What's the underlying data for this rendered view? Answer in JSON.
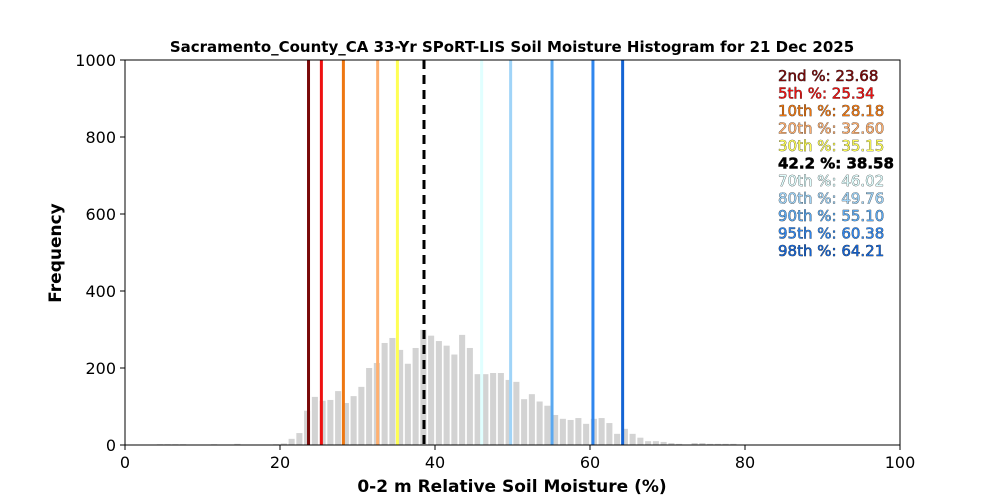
{
  "chart_data": {
    "type": "bar",
    "title": "Sacramento_County_CA 33-Yr SPoRT-LIS Soil Moisture Histogram for 21 Dec 2025",
    "xlabel": "0-2 m Relative Soil Moisture (%)",
    "ylabel": "Frequency",
    "xlim": [
      0,
      100
    ],
    "ylim": [
      0,
      1000
    ],
    "xticks": [
      "0",
      "20",
      "40",
      "60",
      "80",
      "100"
    ],
    "yticks": [
      "0",
      "200",
      "400",
      "600",
      "800",
      "1000"
    ],
    "bar_color": "#d3d3d3",
    "bins": {
      "x": [
        4.5,
        5.5,
        6.5,
        7.5,
        11.5,
        14.5,
        15.5,
        19.5,
        20.5,
        21.5,
        22.5,
        23.5,
        24.5,
        25.5,
        26.5,
        27.5,
        28.5,
        29.5,
        30.5,
        31.5,
        32.5,
        33.5,
        34.5,
        35.5,
        36.5,
        37.5,
        38.5,
        39.5,
        40.5,
        41.5,
        42.5,
        43.5,
        44.5,
        45.5,
        46.5,
        47.5,
        48.5,
        49.5,
        50.5,
        51.5,
        52.5,
        53.5,
        54.5,
        55.5,
        56.5,
        57.5,
        58.5,
        59.5,
        60.5,
        61.5,
        62.5,
        63.5,
        64.5,
        65.5,
        66.5,
        67.5,
        68.5,
        69.5,
        70.5,
        71.5,
        73.5,
        74.5,
        75.5,
        76.5,
        77.5,
        78.5
      ],
      "counts": [
        2,
        2,
        2,
        2,
        2,
        3,
        1,
        2,
        4,
        16,
        31,
        89,
        125,
        115,
        117,
        140,
        109,
        127,
        151,
        200,
        213,
        265,
        278,
        247,
        211,
        252,
        299,
        284,
        270,
        258,
        235,
        286,
        252,
        184,
        184,
        187,
        187,
        169,
        164,
        119,
        132,
        113,
        102,
        78,
        68,
        65,
        70,
        55,
        68,
        70,
        57,
        29,
        42,
        29,
        19,
        10,
        10,
        8,
        5,
        3,
        5,
        5,
        3,
        3,
        3,
        3
      ]
    },
    "percentile_lines": [
      {
        "label": "2nd %: 23.68",
        "value": 23.68,
        "color": "#7a0a0a",
        "dashed": false
      },
      {
        "label": "5th %: 25.34",
        "value": 25.34,
        "color": "#ee1111",
        "dashed": false
      },
      {
        "label": "10th %: 28.18",
        "value": 28.18,
        "color": "#ee7711",
        "dashed": false
      },
      {
        "label": "20th %: 32.60",
        "value": 32.6,
        "color": "#ffb070",
        "dashed": false
      },
      {
        "label": "30th %: 35.15",
        "value": 35.15,
        "color": "#ffff55",
        "dashed": false
      },
      {
        "label": "42.2 %: 38.58",
        "value": 38.58,
        "color": "#000000",
        "dashed": true
      },
      {
        "label": "70th %: 46.02",
        "value": 46.02,
        "color": "#e0ffff",
        "dashed": false
      },
      {
        "label": "80th %: 49.76",
        "value": 49.76,
        "color": "#a0d4f8",
        "dashed": false
      },
      {
        "label": "90th %: 55.10",
        "value": 55.1,
        "color": "#5aa8f0",
        "dashed": false
      },
      {
        "label": "95th %: 60.38",
        "value": 60.38,
        "color": "#2f86ee",
        "dashed": false
      },
      {
        "label": "98th %: 64.21",
        "value": 64.21,
        "color": "#1464d4",
        "dashed": false
      }
    ],
    "legend_placement": "top-right",
    "grid": false
  }
}
